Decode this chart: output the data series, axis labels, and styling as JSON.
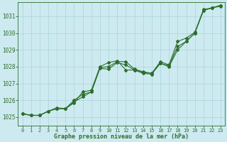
{
  "hours": [
    0,
    1,
    2,
    3,
    4,
    5,
    6,
    7,
    8,
    9,
    10,
    11,
    12,
    13,
    14,
    15,
    16,
    17,
    18,
    19,
    20,
    21,
    22,
    23
  ],
  "line1": [
    1025.2,
    1025.1,
    1025.1,
    1025.35,
    1025.55,
    1025.5,
    1026.0,
    1026.35,
    1026.5,
    1027.95,
    1028.0,
    1028.3,
    1028.3,
    1027.85,
    1027.7,
    1027.6,
    1028.2,
    1028.0,
    1029.0,
    1029.5,
    1030.0,
    1031.35,
    1031.5,
    1031.6
  ],
  "line2": [
    1025.2,
    1025.1,
    1025.1,
    1025.35,
    1025.5,
    1025.5,
    1025.85,
    1026.5,
    1026.6,
    1028.0,
    1028.25,
    1028.35,
    1027.8,
    1027.8,
    1027.65,
    1027.6,
    1028.3,
    1028.1,
    1029.5,
    1029.7,
    1030.05,
    1031.4,
    1031.5,
    1031.65
  ],
  "line3": [
    1025.2,
    1025.1,
    1025.1,
    1025.35,
    1025.5,
    1025.5,
    1025.9,
    1026.2,
    1026.5,
    1027.9,
    1027.85,
    1028.25,
    1028.1,
    1027.8,
    1027.6,
    1027.55,
    1028.2,
    1028.05,
    1029.2,
    1029.5,
    1030.0,
    1031.35,
    1031.5,
    1031.65
  ],
  "line_color": "#2d6e2d",
  "bg_color": "#cdeaf0",
  "grid_color": "#aad4dc",
  "xlabel": "Graphe pression niveau de la mer (hPa)",
  "ylim": [
    1024.5,
    1031.85
  ],
  "yticks": [
    1025,
    1026,
    1027,
    1028,
    1029,
    1030,
    1031
  ],
  "xticks": [
    0,
    1,
    2,
    3,
    4,
    5,
    6,
    7,
    8,
    9,
    10,
    11,
    12,
    13,
    14,
    15,
    16,
    17,
    18,
    19,
    20,
    21,
    22,
    23
  ],
  "marker": "D",
  "marker_size": 2.0,
  "linewidth": 0.8,
  "tick_fontsize": 5.0,
  "xlabel_fontsize": 6.0
}
